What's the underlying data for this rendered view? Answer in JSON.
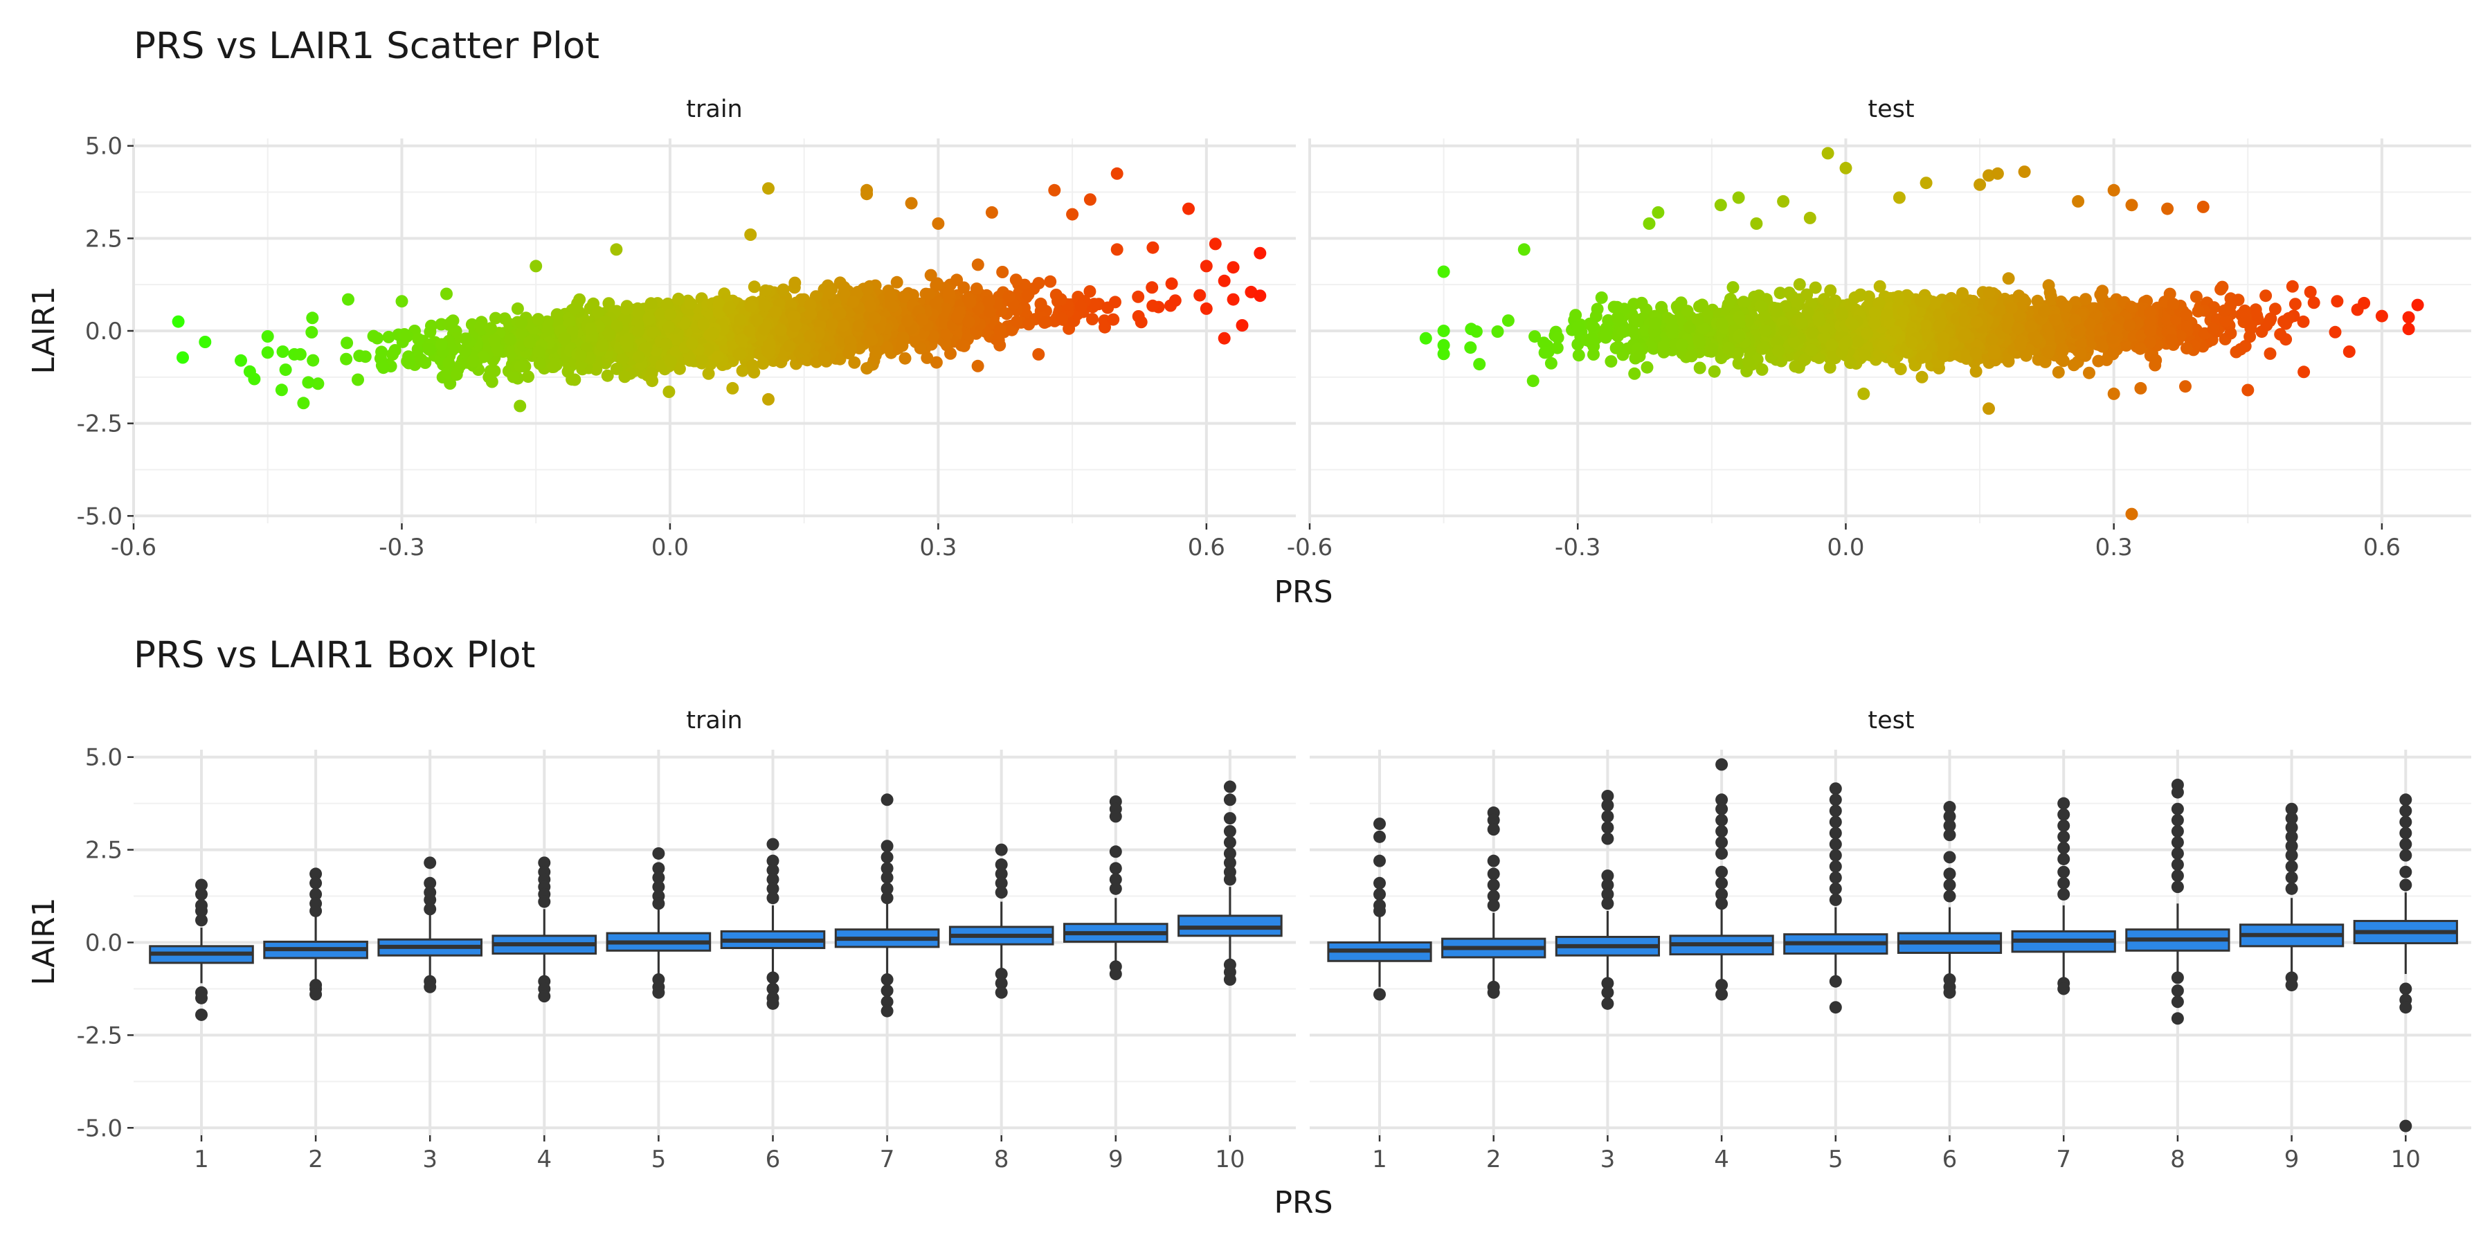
{
  "chart_data": [
    {
      "type": "scatter",
      "title": "PRS vs LAIR1 Scatter Plot",
      "xlabel": "PRS",
      "ylabel": "LAIR1",
      "xlim": [
        -0.6,
        0.7
      ],
      "ylim": [
        -5.2,
        5.2
      ],
      "x_ticks": [
        -0.6,
        -0.3,
        0.0,
        0.3,
        0.6
      ],
      "x_tick_labels": [
        "-0.6",
        "-0.3",
        "0.0",
        "0.3",
        "0.6"
      ],
      "y_ticks": [
        -5.0,
        -2.5,
        0.0,
        2.5,
        5.0
      ],
      "y_tick_labels": [
        "-5.0",
        "-2.5",
        "0.0",
        "2.5",
        "5.0"
      ],
      "grid": true,
      "color_scale": {
        "low": "#33ff00",
        "mid": "#c0b400",
        "high": "#ff1a00",
        "mapped_to": "PRS"
      },
      "panels": [
        {
          "name": "train",
          "points": [
            [
              -0.55,
              0.25
            ],
            [
              -0.545,
              -0.72
            ],
            [
              -0.52,
              -0.3
            ],
            [
              -0.48,
              -0.8
            ],
            [
              -0.47,
              -1.1
            ],
            [
              -0.465,
              -1.3
            ],
            [
              -0.45,
              -0.15
            ],
            [
              -0.43,
              -1.05
            ],
            [
              -0.41,
              -1.95
            ],
            [
              -0.4,
              0.35
            ],
            [
              -0.36,
              0.85
            ],
            [
              -0.3,
              0.8
            ],
            [
              -0.25,
              1.0
            ],
            [
              -0.15,
              1.75
            ],
            [
              -0.06,
              2.2
            ],
            [
              -0.02,
              -1.35
            ],
            [
              0.07,
              -1.55
            ],
            [
              0.09,
              2.6
            ],
            [
              0.11,
              3.85
            ],
            [
              0.11,
              -1.85
            ],
            [
              0.22,
              3.8
            ],
            [
              0.22,
              3.7
            ],
            [
              0.27,
              3.45
            ],
            [
              0.3,
              2.9
            ],
            [
              0.36,
              3.2
            ],
            [
              0.43,
              3.8
            ],
            [
              0.45,
              3.15
            ],
            [
              0.47,
              3.55
            ],
            [
              0.5,
              4.25
            ],
            [
              0.5,
              2.2
            ],
            [
              0.54,
              2.25
            ],
            [
              0.58,
              3.3
            ],
            [
              0.6,
              1.75
            ],
            [
              0.6,
              0.6
            ],
            [
              0.61,
              2.35
            ],
            [
              0.62,
              1.35
            ],
            [
              0.63,
              0.85
            ],
            [
              0.64,
              0.15
            ],
            [
              0.65,
              1.05
            ],
            [
              0.66,
              2.1
            ],
            [
              0.66,
              0.95
            ],
            [
              0.62,
              -0.2
            ]
          ]
        },
        {
          "name": "test",
          "points": [
            [
              -0.47,
              -0.2
            ],
            [
              -0.45,
              1.6
            ],
            [
              -0.45,
              0.0
            ],
            [
              -0.42,
              -0.45
            ],
            [
              -0.41,
              -0.9
            ],
            [
              -0.36,
              2.2
            ],
            [
              -0.35,
              -1.35
            ],
            [
              -0.22,
              2.9
            ],
            [
              -0.21,
              3.2
            ],
            [
              -0.14,
              3.4
            ],
            [
              -0.12,
              3.6
            ],
            [
              -0.1,
              2.9
            ],
            [
              -0.07,
              3.5
            ],
            [
              -0.04,
              3.05
            ],
            [
              -0.02,
              4.8
            ],
            [
              0.0,
              4.4
            ],
            [
              0.02,
              -1.7
            ],
            [
              0.06,
              3.6
            ],
            [
              0.09,
              4.0
            ],
            [
              0.15,
              3.95
            ],
            [
              0.16,
              4.2
            ],
            [
              0.17,
              4.25
            ],
            [
              0.2,
              4.3
            ],
            [
              0.26,
              3.5
            ],
            [
              0.3,
              3.8
            ],
            [
              0.32,
              3.4
            ],
            [
              0.36,
              3.3
            ],
            [
              0.4,
              3.35
            ],
            [
              0.16,
              -2.1
            ],
            [
              0.3,
              -1.7
            ],
            [
              0.32,
              -4.95
            ],
            [
              0.33,
              -1.55
            ],
            [
              0.38,
              -1.5
            ],
            [
              0.45,
              -1.6
            ],
            [
              0.47,
              0.95
            ],
            [
              0.5,
              1.2
            ],
            [
              0.52,
              1.05
            ],
            [
              0.55,
              0.8
            ],
            [
              0.58,
              0.75
            ],
            [
              0.6,
              0.4
            ],
            [
              0.63,
              0.05
            ],
            [
              0.64,
              0.7
            ]
          ]
        }
      ]
    },
    {
      "type": "box",
      "title": "PRS vs LAIR1 Box Plot",
      "xlabel": "PRS",
      "ylabel": "LAIR1",
      "categories": [
        "1",
        "2",
        "3",
        "4",
        "5",
        "6",
        "7",
        "8",
        "9",
        "10"
      ],
      "ylim": [
        -5.2,
        5.2
      ],
      "y_ticks": [
        -5.0,
        -2.5,
        0.0,
        2.5,
        5.0
      ],
      "y_tick_labels": [
        "-5.0",
        "-2.5",
        "0.0",
        "2.5",
        "5.0"
      ],
      "grid": true,
      "box_color": "#2c87e6",
      "panels": [
        {
          "name": "train",
          "boxes": [
            {
              "q1": -0.55,
              "median": -0.3,
              "q3": -0.1,
              "low": -1.1,
              "high": 0.4,
              "out_hi": [
                1.55,
                1.3,
                1.0,
                0.85,
                0.6
              ],
              "out_lo": [
                -1.35,
                -1.5,
                -1.95
              ]
            },
            {
              "q1": -0.42,
              "median": -0.18,
              "q3": 0.02,
              "low": -1.1,
              "high": 0.7,
              "out_hi": [
                1.85,
                1.6,
                1.3,
                1.05,
                0.85
              ],
              "out_lo": [
                -1.15,
                -1.25,
                -1.4
              ]
            },
            {
              "q1": -0.35,
              "median": -0.12,
              "q3": 0.08,
              "low": -1.0,
              "high": 0.75,
              "out_hi": [
                2.15,
                1.6,
                1.35,
                1.15,
                0.9
              ],
              "out_lo": [
                -1.05,
                -1.2
              ]
            },
            {
              "q1": -0.3,
              "median": -0.05,
              "q3": 0.18,
              "low": -0.95,
              "high": 0.9,
              "out_hi": [
                2.15,
                1.9,
                1.7,
                1.5,
                1.3,
                1.1
              ],
              "out_lo": [
                -1.05,
                -1.25,
                -1.45
              ]
            },
            {
              "q1": -0.22,
              "median": 0.0,
              "q3": 0.25,
              "low": -0.95,
              "high": 0.95,
              "out_hi": [
                2.4,
                2.0,
                1.75,
                1.5,
                1.25,
                1.05
              ],
              "out_lo": [
                -1.0,
                -1.2,
                -1.35
              ]
            },
            {
              "q1": -0.15,
              "median": 0.05,
              "q3": 0.3,
              "low": -0.85,
              "high": 1.0,
              "out_hi": [
                2.65,
                2.2,
                1.95,
                1.7,
                1.45,
                1.2
              ],
              "out_lo": [
                -0.95,
                -1.25,
                -1.5,
                -1.65
              ]
            },
            {
              "q1": -0.12,
              "median": 0.1,
              "q3": 0.35,
              "low": -0.85,
              "high": 1.05,
              "out_hi": [
                3.85,
                2.6,
                2.3,
                2.0,
                1.75,
                1.45,
                1.2
              ],
              "out_lo": [
                -1.0,
                -1.3,
                -1.6,
                -1.85
              ]
            },
            {
              "q1": -0.05,
              "median": 0.18,
              "q3": 0.42,
              "low": -0.75,
              "high": 1.1,
              "out_hi": [
                2.5,
                2.1,
                1.85,
                1.6,
                1.35
              ],
              "out_lo": [
                -0.85,
                -1.1,
                -1.35
              ]
            },
            {
              "q1": 0.02,
              "median": 0.25,
              "q3": 0.5,
              "low": -0.6,
              "high": 1.2,
              "out_hi": [
                3.8,
                3.6,
                3.4,
                2.45,
                2.0,
                1.7,
                1.45
              ],
              "out_lo": [
                -0.65,
                -0.85
              ]
            },
            {
              "q1": 0.18,
              "median": 0.4,
              "q3": 0.72,
              "low": -0.5,
              "high": 1.5,
              "out_hi": [
                4.2,
                3.85,
                3.35,
                3.0,
                2.7,
                2.4,
                2.15,
                1.9,
                1.7
              ],
              "out_lo": [
                -0.6,
                -0.8,
                -1.0
              ]
            }
          ]
        },
        {
          "name": "test",
          "boxes": [
            {
              "q1": -0.5,
              "median": -0.22,
              "q3": 0.0,
              "low": -1.2,
              "high": 0.7,
              "out_hi": [
                3.2,
                2.85,
                2.2,
                1.6,
                1.3,
                1.0,
                0.85
              ],
              "out_lo": [
                -1.4
              ]
            },
            {
              "q1": -0.4,
              "median": -0.15,
              "q3": 0.1,
              "low": -1.1,
              "high": 0.8,
              "out_hi": [
                3.5,
                3.3,
                3.05,
                2.2,
                1.85,
                1.55,
                1.25,
                1.0
              ],
              "out_lo": [
                -1.2,
                -1.35
              ]
            },
            {
              "q1": -0.35,
              "median": -0.1,
              "q3": 0.15,
              "low": -1.05,
              "high": 0.85,
              "out_hi": [
                3.95,
                3.7,
                3.4,
                3.1,
                2.8,
                1.8,
                1.55,
                1.3,
                1.05
              ],
              "out_lo": [
                -1.1,
                -1.35,
                -1.65
              ]
            },
            {
              "q1": -0.32,
              "median": -0.05,
              "q3": 0.18,
              "low": -1.0,
              "high": 0.9,
              "out_hi": [
                4.8,
                3.85,
                3.6,
                3.3,
                3.0,
                2.7,
                2.4,
                1.9,
                1.6,
                1.3,
                1.05
              ],
              "out_lo": [
                -1.15,
                -1.4
              ]
            },
            {
              "q1": -0.3,
              "median": -0.02,
              "q3": 0.22,
              "low": -1.0,
              "high": 0.95,
              "out_hi": [
                4.15,
                3.85,
                3.55,
                3.25,
                2.95,
                2.65,
                2.35,
                2.05,
                1.75,
                1.45,
                1.15
              ],
              "out_lo": [
                -1.05,
                -1.75
              ]
            },
            {
              "q1": -0.28,
              "median": 0.0,
              "q3": 0.25,
              "low": -0.95,
              "high": 0.95,
              "out_hi": [
                3.65,
                3.4,
                3.15,
                2.9,
                2.3,
                1.85,
                1.55,
                1.25
              ],
              "out_lo": [
                -1.0,
                -1.2,
                -1.35
              ]
            },
            {
              "q1": -0.25,
              "median": 0.05,
              "q3": 0.3,
              "low": -0.95,
              "high": 1.0,
              "out_hi": [
                3.75,
                3.45,
                3.15,
                2.85,
                2.55,
                2.25,
                1.9,
                1.6,
                1.3
              ],
              "out_lo": [
                -1.1,
                -1.25
              ]
            },
            {
              "q1": -0.22,
              "median": 0.08,
              "q3": 0.35,
              "low": -0.9,
              "high": 1.05,
              "out_hi": [
                4.25,
                4.05,
                3.6,
                3.3,
                3.0,
                2.7,
                2.4,
                2.1,
                1.8,
                1.5
              ],
              "out_lo": [
                -0.95,
                -1.3,
                -1.6,
                -2.05
              ]
            },
            {
              "q1": -0.1,
              "median": 0.2,
              "q3": 0.48,
              "low": -0.85,
              "high": 1.2,
              "out_hi": [
                3.6,
                3.35,
                3.1,
                2.85,
                2.6,
                2.35,
                2.05,
                1.75,
                1.45
              ],
              "out_lo": [
                -0.95,
                -1.15
              ]
            },
            {
              "q1": -0.02,
              "median": 0.28,
              "q3": 0.58,
              "low": -0.85,
              "high": 1.35,
              "out_hi": [
                3.85,
                3.55,
                3.25,
                2.95,
                2.65,
                2.35,
                1.9,
                1.55
              ],
              "out_lo": [
                -1.25,
                -1.55,
                -1.75,
                -4.95
              ]
            }
          ]
        }
      ]
    }
  ]
}
